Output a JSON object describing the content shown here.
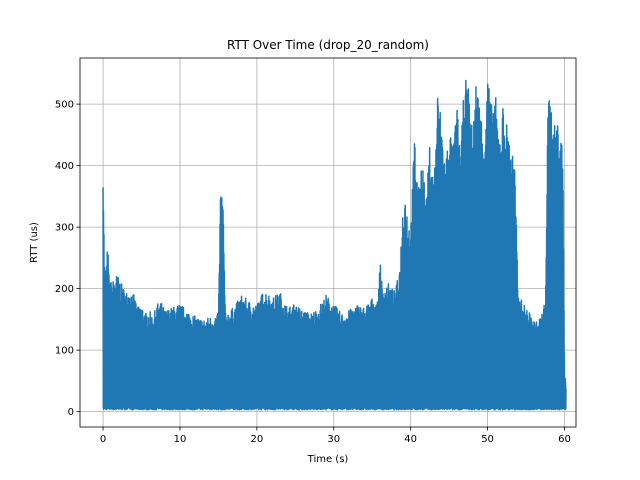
{
  "chart_data": {
    "type": "line",
    "title": "RTT Over Time (drop_20_random)",
    "xlabel": "Time (s)",
    "ylabel": "RTT (us)",
    "xlim": [
      -3,
      61.5
    ],
    "ylim": [
      -25,
      575
    ],
    "xticks": [
      0,
      10,
      20,
      30,
      40,
      50,
      60
    ],
    "yticks": [
      0,
      100,
      200,
      300,
      400,
      500
    ],
    "grid": true,
    "legend": "none",
    "series_color": "#1f77b4",
    "series": [
      {
        "floor": 3,
        "upper_envelope": [
          [
            0.0,
            445
          ],
          [
            0.15,
            250
          ],
          [
            0.4,
            230
          ],
          [
            0.6,
            275
          ],
          [
            0.8,
            215
          ],
          [
            1.2,
            210
          ],
          [
            1.6,
            225
          ],
          [
            2.0,
            220
          ],
          [
            2.5,
            205
          ],
          [
            3.0,
            195
          ],
          [
            3.5,
            200
          ],
          [
            4.0,
            190
          ],
          [
            4.5,
            170
          ],
          [
            5.0,
            175
          ],
          [
            5.5,
            160
          ],
          [
            6.0,
            165
          ],
          [
            6.5,
            155
          ],
          [
            7.0,
            175
          ],
          [
            7.5,
            180
          ],
          [
            8.0,
            165
          ],
          [
            9.0,
            170
          ],
          [
            10.0,
            175
          ],
          [
            11.0,
            165
          ],
          [
            12.0,
            155
          ],
          [
            13.0,
            150
          ],
          [
            14.0,
            155
          ],
          [
            15.0,
            160
          ],
          [
            15.3,
            380
          ],
          [
            15.6,
            345
          ],
          [
            15.9,
            160
          ],
          [
            16.5,
            165
          ],
          [
            17.0,
            170
          ],
          [
            18.0,
            190
          ],
          [
            19.0,
            180
          ],
          [
            20.0,
            175
          ],
          [
            21.0,
            200
          ],
          [
            22.0,
            185
          ],
          [
            23.0,
            195
          ],
          [
            24.0,
            170
          ],
          [
            25.0,
            175
          ],
          [
            26.0,
            165
          ],
          [
            27.0,
            160
          ],
          [
            28.0,
            170
          ],
          [
            29.0,
            190
          ],
          [
            30.0,
            175
          ],
          [
            31.0,
            160
          ],
          [
            32.0,
            165
          ],
          [
            33.0,
            175
          ],
          [
            34.0,
            170
          ],
          [
            35.0,
            185
          ],
          [
            35.8,
            180
          ],
          [
            36.0,
            262
          ],
          [
            36.3,
            200
          ],
          [
            37.0,
            210
          ],
          [
            38.0,
            195
          ],
          [
            38.6,
            240
          ],
          [
            39.0,
            340
          ],
          [
            39.3,
            360
          ],
          [
            39.6,
            320
          ],
          [
            40.0,
            300
          ],
          [
            40.5,
            450
          ],
          [
            41.0,
            360
          ],
          [
            41.5,
            420
          ],
          [
            42.0,
            340
          ],
          [
            42.5,
            440
          ],
          [
            43.0,
            375
          ],
          [
            43.5,
            520
          ],
          [
            44.0,
            480
          ],
          [
            44.5,
            400
          ],
          [
            45.0,
            470
          ],
          [
            45.5,
            430
          ],
          [
            46.0,
            500
          ],
          [
            46.5,
            420
          ],
          [
            47.0,
            545
          ],
          [
            47.5,
            530
          ],
          [
            48.0,
            460
          ],
          [
            48.5,
            540
          ],
          [
            49.0,
            505
          ],
          [
            49.5,
            445
          ],
          [
            50.0,
            550
          ],
          [
            50.5,
            500
          ],
          [
            51.0,
            520
          ],
          [
            51.5,
            450
          ],
          [
            52.0,
            500
          ],
          [
            52.5,
            470
          ],
          [
            53.0,
            440
          ],
          [
            53.5,
            410
          ],
          [
            54.0,
            190
          ],
          [
            54.5,
            180
          ],
          [
            55.0,
            170
          ],
          [
            55.5,
            160
          ],
          [
            56.0,
            150
          ],
          [
            56.5,
            145
          ],
          [
            57.0,
            160
          ],
          [
            57.5,
            180
          ],
          [
            57.9,
            530
          ],
          [
            58.3,
            500
          ],
          [
            58.6,
            460
          ],
          [
            59.0,
            480
          ],
          [
            59.5,
            460
          ],
          [
            59.8,
            420
          ],
          [
            60.0,
            70
          ],
          [
            60.2,
            40
          ]
        ]
      }
    ]
  }
}
